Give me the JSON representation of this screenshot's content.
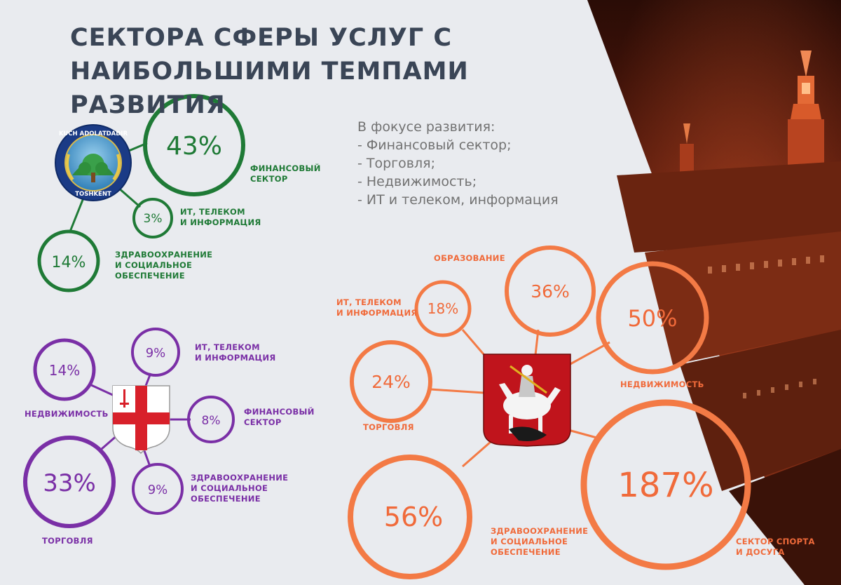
{
  "title": [
    "СЕКТОРА СФЕРЫ УСЛУГ С",
    "НАИБОЛЬШИМИ ТЕМПАМИ РАЗВИТИЯ"
  ],
  "focus": {
    "heading": "В фокусе развития:",
    "items": [
      "- Финансовый сектор;",
      "- Торговля;",
      "- Недвижимость;",
      "- ИТ и телеком, информация"
    ]
  },
  "colors": {
    "green": "#1f7a36",
    "purple": "#7a2fa6",
    "orange": "#f37a45"
  },
  "groups": {
    "tashkent": {
      "emblem": "tashkent-emblem",
      "emblem_text_top": "KUCH ADOLATDADIR",
      "emblem_text_bottom": "TOSHKENT",
      "bubbles": [
        {
          "value": "43%",
          "label": [
            "ФИНАНСОВЫЙ",
            "СЕКТОР"
          ]
        },
        {
          "value": "3%",
          "label": [
            "ИТ, ТЕЛЕКОМ",
            "И ИНФОРМАЦИЯ"
          ]
        },
        {
          "value": "14%",
          "label": [
            "ЗДРАВООХРАНЕНИЕ",
            "И СОЦИАЛЬНОЕ",
            "ОБЕСПЕЧЕНИЕ"
          ]
        }
      ]
    },
    "london": {
      "emblem": "london-shield",
      "bubbles": [
        {
          "value": "14%",
          "label": [
            "НЕДВИЖИМОСТЬ"
          ]
        },
        {
          "value": "9%",
          "label": [
            "ИТ, ТЕЛЕКОМ",
            "И ИНФОРМАЦИЯ"
          ]
        },
        {
          "value": "8%",
          "label": [
            "ФИНАНСОВЫЙ",
            "СЕКТОР"
          ]
        },
        {
          "value": "9%",
          "label": [
            "ЗДРАВООХРАНЕНИЕ",
            "И СОЦИАЛЬНОЕ",
            "ОБЕСПЕЧЕНИЕ"
          ]
        },
        {
          "value": "33%",
          "label": [
            "ТОРГОВЛЯ"
          ]
        }
      ]
    },
    "moscow": {
      "emblem": "moscow-coat-of-arms",
      "bubbles": [
        {
          "value": "18%",
          "label": [
            "ИТ, ТЕЛЕКОМ",
            "И ИНФОРМАЦИЯ"
          ]
        },
        {
          "value": "36%",
          "label": [
            "ОБРАЗОВАНИЕ"
          ]
        },
        {
          "value": "50%",
          "label": [
            "НЕДВИЖИМОСТЬ"
          ]
        },
        {
          "value": "24%",
          "label": [
            "ТОРГОВЛЯ"
          ]
        },
        {
          "value": "56%",
          "label": [
            "ЗДРАВООХРАНЕНИЕ",
            "И СОЦИАЛЬНОЕ",
            "ОБЕСПЕЧЕНИЕ"
          ]
        },
        {
          "value": "187%",
          "label": [
            "СЕКТОР СПОРТА",
            "И ДОСУГА"
          ]
        }
      ]
    }
  }
}
